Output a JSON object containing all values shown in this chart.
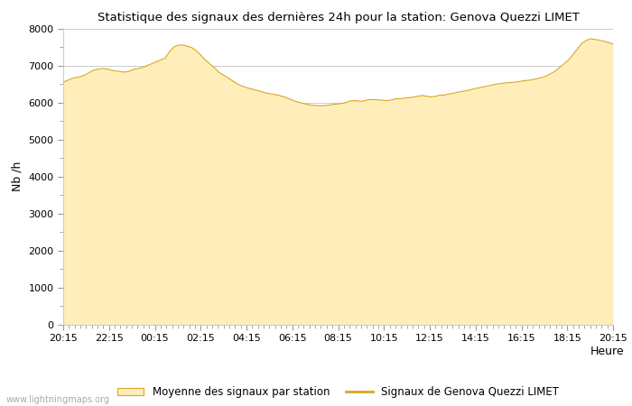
{
  "title": "Statistique des signaux des dernières 24h pour la station: Genova Quezzi LIMET",
  "xlabel": "Heure",
  "ylabel": "Nb /h",
  "ylim": [
    0,
    8000
  ],
  "yticks_major": [
    0,
    1000,
    2000,
    3000,
    4000,
    5000,
    6000,
    7000,
    8000
  ],
  "xtick_labels": [
    "20:15",
    "22:15",
    "00:15",
    "02:15",
    "04:15",
    "06:15",
    "08:15",
    "10:15",
    "12:15",
    "14:15",
    "16:15",
    "18:15",
    "20:15"
  ],
  "fill_color": "#FFEEBA",
  "line_color": "#DAA520",
  "background_color": "#FFFFFF",
  "grid_color": "#CCCCCC",
  "watermark": "www.lightningmaps.org",
  "legend_fill_label": "Moyenne des signaux par station",
  "legend_line_label": "Signaux de Genova Quezzi LIMET",
  "y_fill": [
    6550,
    6600,
    6650,
    6680,
    6700,
    6750,
    6820,
    6880,
    6900,
    6920,
    6900,
    6870,
    6850,
    6830,
    6820,
    6850,
    6900,
    6920,
    6950,
    7000,
    7050,
    7100,
    7150,
    7200,
    7380,
    7500,
    7550,
    7550,
    7520,
    7480,
    7400,
    7280,
    7150,
    7050,
    6950,
    6830,
    6750,
    6680,
    6600,
    6520,
    6460,
    6420,
    6380,
    6350,
    6320,
    6280,
    6250,
    6230,
    6210,
    6180,
    6150,
    6100,
    6050,
    6010,
    5980,
    5950,
    5930,
    5920,
    5910,
    5920,
    5930,
    5950,
    5960,
    5980,
    6010,
    6050,
    6050,
    6030,
    6050,
    6080,
    6080,
    6070,
    6060,
    6050,
    6070,
    6100,
    6100,
    6120,
    6130,
    6150,
    6170,
    6190,
    6170,
    6150,
    6170,
    6200,
    6200,
    6230,
    6250,
    6280,
    6300,
    6320,
    6350,
    6380,
    6400,
    6430,
    6450,
    6480,
    6500,
    6520,
    6530,
    6540,
    6550,
    6570,
    6590,
    6600,
    6620,
    6650,
    6680,
    6720,
    6780,
    6850,
    6950,
    7050,
    7150,
    7300,
    7450,
    7600,
    7680,
    7720,
    7700,
    7680,
    7650,
    7620,
    7580
  ]
}
